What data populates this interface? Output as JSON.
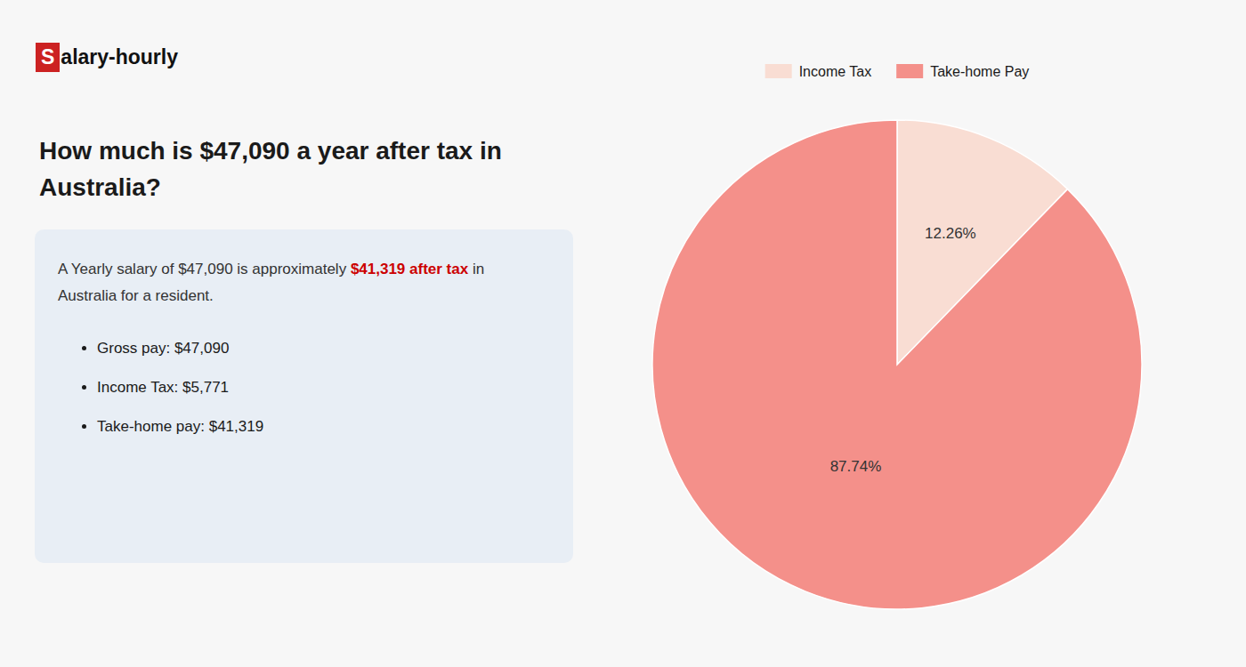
{
  "chart_data": {
    "type": "pie",
    "title": "How much is $47,090 a year after tax in Australia?",
    "annotations": [
      "S",
      "alary-hourly",
      "A Yearly salary of $47,090 is approximately ",
      "$41,319 after tax",
      " in",
      "Australia for a resident.",
      "Gross pay: $47,090",
      "Income Tax: $5,771",
      "Take-home pay: $41,319"
    ],
    "categories": [
      "Income Tax",
      "Take-home Pay"
    ],
    "values": [
      12.26,
      87.74
    ],
    "value_labels": [
      "12.26%",
      "87.74%"
    ],
    "colors": [
      "#f9ddd3",
      "#f4908a"
    ],
    "data_labels": true,
    "legend": "top"
  }
}
